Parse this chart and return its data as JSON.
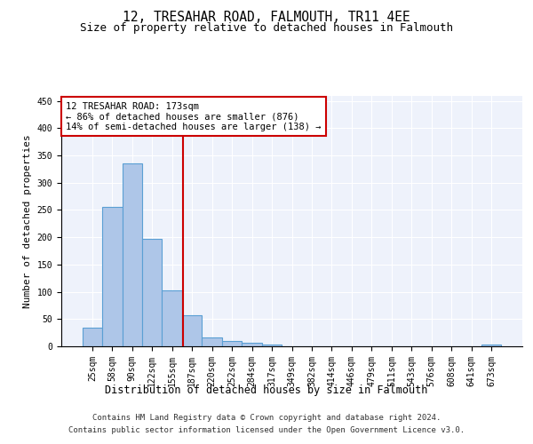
{
  "title": "12, TRESAHAR ROAD, FALMOUTH, TR11 4EE",
  "subtitle": "Size of property relative to detached houses in Falmouth",
  "xlabel": "Distribution of detached houses by size in Falmouth",
  "ylabel": "Number of detached properties",
  "bar_values": [
    35,
    255,
    335,
    197,
    103,
    57,
    17,
    10,
    7,
    4,
    0,
    0,
    0,
    0,
    0,
    0,
    0,
    0,
    0,
    0,
    4
  ],
  "bar_labels": [
    "25sqm",
    "58sqm",
    "90sqm",
    "122sqm",
    "155sqm",
    "187sqm",
    "220sqm",
    "252sqm",
    "284sqm",
    "317sqm",
    "349sqm",
    "382sqm",
    "414sqm",
    "446sqm",
    "479sqm",
    "511sqm",
    "543sqm",
    "576sqm",
    "608sqm",
    "641sqm",
    "673sqm"
  ],
  "bar_color": "#aec6e8",
  "bar_edgecolor": "#5a9fd4",
  "bar_linewidth": 0.8,
  "vline_color": "#cc0000",
  "vline_linewidth": 1.5,
  "annotation_text": "12 TRESAHAR ROAD: 173sqm\n← 86% of detached houses are smaller (876)\n14% of semi-detached houses are larger (138) →",
  "annotation_box_edgecolor": "#cc0000",
  "annotation_box_facecolor": "#ffffff",
  "annotation_fontsize": 7.5,
  "ylim": [
    0,
    460
  ],
  "yticks": [
    0,
    50,
    100,
    150,
    200,
    250,
    300,
    350,
    400,
    450
  ],
  "title_fontsize": 10.5,
  "subtitle_fontsize": 9,
  "xlabel_fontsize": 8.5,
  "ylabel_fontsize": 8,
  "tick_fontsize": 7,
  "footer_line1": "Contains HM Land Registry data © Crown copyright and database right 2024.",
  "footer_line2": "Contains public sector information licensed under the Open Government Licence v3.0.",
  "footer_fontsize": 6.5,
  "bg_color": "#eef2fb",
  "grid_color": "#ffffff",
  "fig_bg_color": "#ffffff"
}
